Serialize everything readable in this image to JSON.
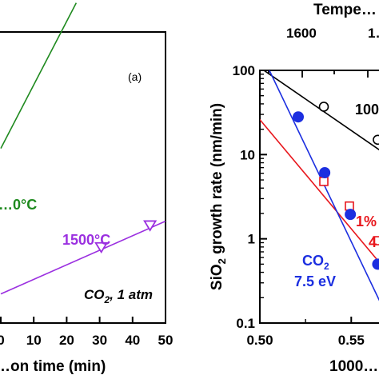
{
  "chart_data": [
    {
      "type": "line",
      "panel_label": "(a)",
      "xlabel": "…on time (min)",
      "x_ticks": [
        "0",
        "10",
        "20",
        "30",
        "40",
        "50"
      ],
      "xlim": [
        0,
        50
      ],
      "annotations": {
        "gas": "CO",
        "gas_sub": "2",
        "pressure": ", 1 atm"
      },
      "series": [
        {
          "name": "…0°C",
          "color": "#1f8a1f",
          "marker": "none",
          "x": [
            0,
            22.9
          ],
          "y": [
            0.6,
            1.1
          ]
        },
        {
          "name": "1500°C",
          "color": "#9b30e0",
          "marker": "triangle-down-open",
          "x": [
            0,
            50
          ],
          "y": [
            0.1,
            0.35
          ],
          "points_x": [
            30.5,
            45.3
          ],
          "points_y": [
            0.26,
            0.335
          ]
        }
      ]
    },
    {
      "type": "scatter",
      "top_axis_title": "Tempe…",
      "top_ticks": [
        "1600",
        "1…"
      ],
      "xlabel": "1000…",
      "ylabel_main": "SiO",
      "ylabel_sub": "2",
      "ylabel_rest": " growth rate (nm/min)",
      "x_ticks": [
        "0.50",
        "0.55"
      ],
      "xlim": [
        0.5,
        0.57
      ],
      "y_scale": "log",
      "ylim": [
        0.1,
        100
      ],
      "y_ticks": [
        "0.1",
        "1",
        "10",
        "100"
      ],
      "series": [
        {
          "name": "100…",
          "color": "#000000",
          "marker": "circle-open",
          "x": [
            0.535,
            0.5645
          ],
          "y": [
            37,
            15
          ],
          "fit_x": [
            0.5022,
            0.5783
          ],
          "fit_y": [
            100,
            7.3
          ]
        },
        {
          "name": "1%… 4…",
          "name_line1": "1%",
          "name_line2": "4",
          "color": "#e8161c",
          "marker": "square-open",
          "x": [
            0.535,
            0.549,
            0.5645,
            0.5745
          ],
          "y": [
            4.8,
            2.45,
            0.95,
            0.45
          ],
          "fit_x": [
            0.5,
            0.5785
          ],
          "fit_y": [
            26,
            0.24
          ]
        },
        {
          "name": "CO₂ 7.5 eV",
          "name_line1": "CO",
          "name_line1_sub": "2",
          "name_line2": "7.5 eV",
          "color": "#1c2fe0",
          "marker": "circle-filled",
          "x": [
            0.521,
            0.5355,
            0.5495,
            0.5645
          ],
          "y": [
            28,
            6.1,
            1.95,
            0.5
          ],
          "fit_x": [
            0.5052,
            0.5713
          ],
          "fit_y": [
            100,
            0.1
          ]
        }
      ]
    }
  ]
}
